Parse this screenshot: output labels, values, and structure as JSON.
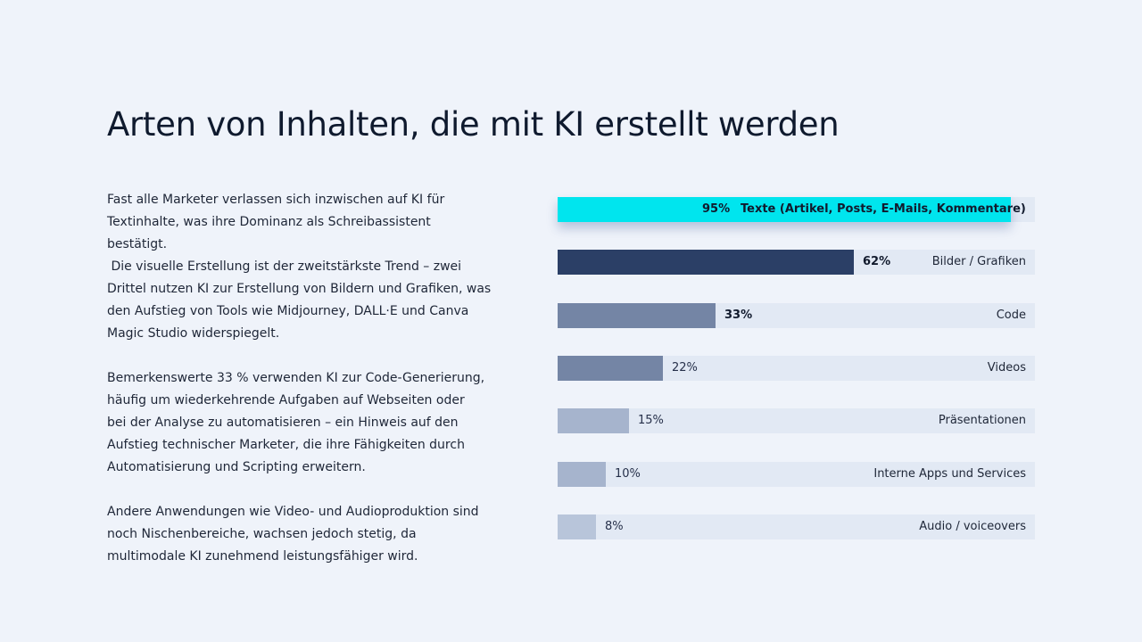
{
  "title": "Arten von Inhalten, die mit KI erstellt werden",
  "body": {
    "p1": [
      "Fast alle Marketer verlassen sich inzwischen auf KI für",
      "Textinhalte, was ihre Dominanz als Schreibassistent",
      "bestätigt.",
      " Die visuelle Erstellung ist der zweitstärkste Trend – zwei",
      "Drittel nutzen KI zur Erstellung von Bildern und Grafiken, was",
      "den Aufstieg von Tools wie Midjourney, DALL·E und Canva",
      "Magic Studio widerspiegelt."
    ],
    "p2": [
      "Bemerkenswerte 33 % verwenden KI zur Code-Generierung,",
      "häufig um wiederkehrende Aufgaben auf Webseiten oder",
      "bei der Analyse zu automatisieren – ein Hinweis auf den",
      "Aufstieg technischer Marketer, die ihre Fähigkeiten durch",
      "Automatisierung und Scripting erweitern."
    ],
    "p3": [
      "Andere Anwendungen wie Video- und Audioproduktion sind",
      "noch Nischenbereiche, wachsen jedoch stetig, da",
      "multimodale KI zunehmend leistungsfähiger wird."
    ]
  },
  "chart_data": {
    "type": "bar",
    "orientation": "horizontal",
    "title": "",
    "xlabel": "",
    "ylabel": "",
    "xlim": [
      0,
      100
    ],
    "unit": "%",
    "grid": false,
    "categories": [
      "Texte (Artikel, Posts, E-Mails, Kommentare)",
      "Bilder / Grafiken",
      "Code",
      "Videos",
      "Präsentationen",
      "Interne Apps und Services",
      "Audio / voiceovers"
    ],
    "values": [
      95,
      62,
      33,
      22,
      15,
      10,
      8
    ],
    "value_labels": [
      "95%",
      "62%",
      "33%",
      "22%",
      "15%",
      "10%",
      "8%"
    ],
    "colors": [
      "#00e5ee",
      "#2b3f66",
      "#7485a5",
      "#7485a5",
      "#a6b4cd",
      "#a6b4cd",
      "#b8c5da"
    ],
    "track_color": "#e2e9f4"
  }
}
